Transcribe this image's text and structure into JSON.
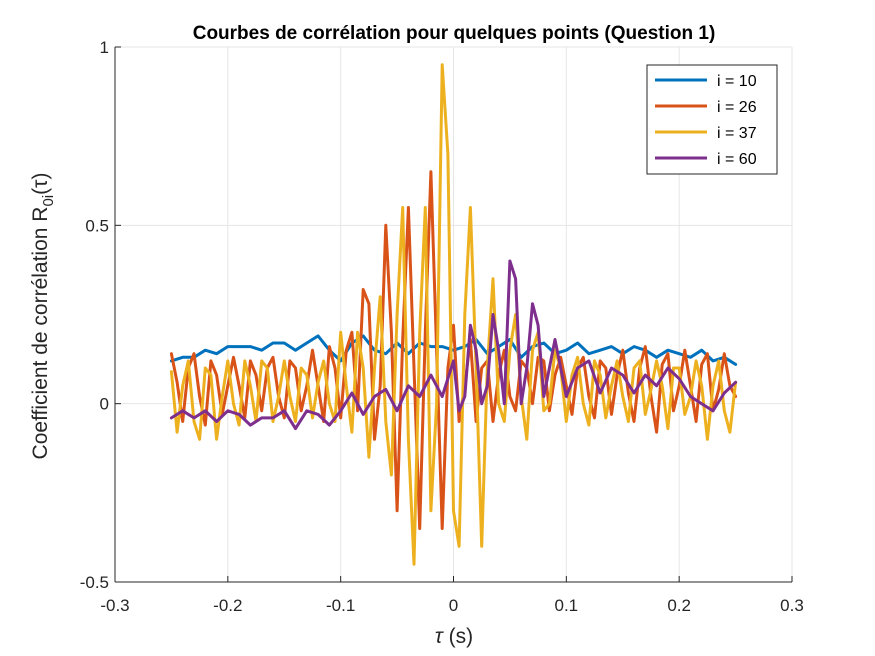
{
  "chart_data": {
    "type": "line",
    "title": "Courbes de corrélation pour quelques points (Question 1)",
    "xlabel": {
      "symbol": "τ",
      "unit": " (s)"
    },
    "ylabel": {
      "prefix": "Coefficient de corrélation R",
      "subscript": "0i",
      "suffix": "(τ)"
    },
    "xlim": [
      -0.3,
      0.3
    ],
    "ylim": [
      -0.5,
      1
    ],
    "xticks": [
      -0.3,
      -0.2,
      -0.1,
      0,
      0.1,
      0.2,
      0.3
    ],
    "xtick_labels": [
      "-0.3",
      "-0.2",
      "-0.1",
      "0",
      "0.1",
      "0.2",
      "0.3"
    ],
    "yticks": [
      -0.5,
      0,
      0.5,
      1
    ],
    "ytick_labels": [
      "-0.5",
      "0",
      "0.5",
      "1"
    ],
    "grid": true,
    "legend_position": "top-right",
    "series": [
      {
        "name": "i = 10",
        "color": "#0072BD",
        "x": [
          -0.25,
          -0.24,
          -0.23,
          -0.22,
          -0.21,
          -0.2,
          -0.19,
          -0.18,
          -0.17,
          -0.16,
          -0.15,
          -0.14,
          -0.13,
          -0.12,
          -0.11,
          -0.1,
          -0.09,
          -0.08,
          -0.07,
          -0.06,
          -0.05,
          -0.04,
          -0.03,
          -0.02,
          -0.01,
          0,
          0.01,
          0.02,
          0.03,
          0.04,
          0.05,
          0.06,
          0.07,
          0.08,
          0.09,
          0.1,
          0.11,
          0.12,
          0.13,
          0.14,
          0.15,
          0.16,
          0.17,
          0.18,
          0.19,
          0.2,
          0.21,
          0.22,
          0.23,
          0.24,
          0.25
        ],
        "y": [
          0.12,
          0.13,
          0.13,
          0.15,
          0.14,
          0.16,
          0.16,
          0.16,
          0.15,
          0.17,
          0.17,
          0.15,
          0.17,
          0.19,
          0.15,
          0.12,
          0.17,
          0.19,
          0.15,
          0.14,
          0.17,
          0.14,
          0.17,
          0.16,
          0.16,
          0.15,
          0.16,
          0.18,
          0.14,
          0.16,
          0.18,
          0.13,
          0.16,
          0.17,
          0.14,
          0.15,
          0.17,
          0.14,
          0.15,
          0.16,
          0.14,
          0.16,
          0.15,
          0.13,
          0.15,
          0.14,
          0.13,
          0.15,
          0.12,
          0.13,
          0.11
        ]
      },
      {
        "name": "i = 26",
        "color": "#D95319",
        "x": [
          -0.25,
          -0.245,
          -0.24,
          -0.235,
          -0.23,
          -0.225,
          -0.22,
          -0.215,
          -0.21,
          -0.205,
          -0.2,
          -0.195,
          -0.19,
          -0.185,
          -0.18,
          -0.175,
          -0.17,
          -0.165,
          -0.16,
          -0.155,
          -0.15,
          -0.145,
          -0.14,
          -0.135,
          -0.13,
          -0.125,
          -0.12,
          -0.115,
          -0.11,
          -0.105,
          -0.1,
          -0.095,
          -0.09,
          -0.085,
          -0.08,
          -0.075,
          -0.07,
          -0.065,
          -0.06,
          -0.055,
          -0.05,
          -0.045,
          -0.04,
          -0.035,
          -0.03,
          -0.025,
          -0.02,
          -0.015,
          -0.01,
          -0.005,
          0,
          0.005,
          0.01,
          0.015,
          0.02,
          0.025,
          0.03,
          0.035,
          0.04,
          0.045,
          0.05,
          0.055,
          0.06,
          0.065,
          0.07,
          0.075,
          0.08,
          0.085,
          0.09,
          0.095,
          0.1,
          0.105,
          0.11,
          0.115,
          0.12,
          0.125,
          0.13,
          0.135,
          0.14,
          0.145,
          0.15,
          0.155,
          0.16,
          0.165,
          0.17,
          0.175,
          0.18,
          0.185,
          0.19,
          0.195,
          0.2,
          0.205,
          0.21,
          0.215,
          0.22,
          0.225,
          0.23,
          0.235,
          0.24,
          0.245,
          0.25
        ],
        "y": [
          0.14,
          0.06,
          -0.05,
          0.1,
          0.14,
          0.02,
          -0.06,
          0.12,
          0.08,
          -0.03,
          0.05,
          0.13,
          0.05,
          -0.04,
          0.12,
          0.08,
          -0.02,
          0.1,
          0.13,
          0.02,
          -0.04,
          0.12,
          0.1,
          -0.02,
          0.05,
          0.15,
          0.05,
          -0.05,
          0.16,
          0.1,
          -0.04,
          0.15,
          0.2,
          -0.02,
          0.32,
          0.28,
          -0.1,
          0.05,
          0.5,
          0.2,
          -0.3,
          0.18,
          0.55,
          0.1,
          -0.35,
          0.2,
          0.65,
          0.15,
          -0.35,
          0.1,
          0.22,
          -0.05,
          0.05,
          0.18,
          -0.05,
          0.1,
          0.12,
          -0.05,
          0.08,
          0.15,
          0.02,
          -0.02,
          0.12,
          0.1,
          0.0,
          0.13,
          0.12,
          -0.02,
          0.08,
          0.13,
          0.05,
          -0.03,
          0.1,
          0.13,
          0.02,
          -0.04,
          0.12,
          0.1,
          -0.03,
          0.08,
          0.15,
          0.03,
          -0.05,
          0.1,
          0.16,
          0.02,
          -0.08,
          0.11,
          0.14,
          -0.02,
          0.05,
          0.15,
          0.05,
          -0.05,
          0.11,
          0.14,
          -0.02,
          0.04,
          0.14,
          0.05,
          0.02
        ]
      },
      {
        "name": "i = 37",
        "color": "#EDB120",
        "x": [
          -0.25,
          -0.245,
          -0.24,
          -0.235,
          -0.23,
          -0.225,
          -0.22,
          -0.215,
          -0.21,
          -0.205,
          -0.2,
          -0.195,
          -0.19,
          -0.185,
          -0.18,
          -0.175,
          -0.17,
          -0.165,
          -0.16,
          -0.155,
          -0.15,
          -0.145,
          -0.14,
          -0.135,
          -0.13,
          -0.125,
          -0.12,
          -0.115,
          -0.11,
          -0.105,
          -0.1,
          -0.095,
          -0.09,
          -0.085,
          -0.08,
          -0.075,
          -0.07,
          -0.065,
          -0.06,
          -0.055,
          -0.05,
          -0.045,
          -0.04,
          -0.035,
          -0.03,
          -0.025,
          -0.02,
          -0.015,
          -0.01,
          -0.005,
          0,
          0.005,
          0.01,
          0.015,
          0.02,
          0.025,
          0.03,
          0.035,
          0.04,
          0.045,
          0.05,
          0.055,
          0.06,
          0.065,
          0.07,
          0.075,
          0.08,
          0.085,
          0.09,
          0.095,
          0.1,
          0.105,
          0.11,
          0.115,
          0.12,
          0.125,
          0.13,
          0.135,
          0.14,
          0.145,
          0.15,
          0.155,
          0.16,
          0.165,
          0.17,
          0.175,
          0.18,
          0.185,
          0.19,
          0.195,
          0.2,
          0.205,
          0.21,
          0.215,
          0.22,
          0.225,
          0.23,
          0.235,
          0.24,
          0.245,
          0.25
        ],
        "y": [
          0.09,
          -0.08,
          0.05,
          0.12,
          -0.05,
          -0.1,
          0.1,
          0.08,
          -0.1,
          0.02,
          0.12,
          0.0,
          -0.06,
          0.12,
          0.05,
          -0.05,
          0.12,
          0.1,
          -0.05,
          0.02,
          0.12,
          0.02,
          -0.05,
          0.1,
          0.08,
          -0.04,
          0.06,
          0.12,
          0.0,
          -0.05,
          0.2,
          0.05,
          -0.08,
          0.2,
          0.1,
          -0.15,
          0.1,
          0.3,
          -0.05,
          -0.2,
          0.25,
          0.55,
          -0.1,
          -0.45,
          0.2,
          0.55,
          -0.3,
          0.0,
          0.95,
          0.7,
          -0.3,
          -0.4,
          0.25,
          0.55,
          0.1,
          -0.4,
          0.1,
          0.35,
          0.0,
          -0.05,
          0.15,
          0.25,
          0.02,
          -0.1,
          0.15,
          0.2,
          -0.02,
          0.0,
          0.15,
          0.1,
          -0.05,
          0.08,
          0.13,
          0.0,
          -0.06,
          0.12,
          0.08,
          -0.04,
          0.05,
          0.12,
          0.02,
          -0.05,
          0.1,
          0.12,
          -0.03,
          0.04,
          0.12,
          0.05,
          -0.07,
          0.1,
          0.1,
          -0.03,
          0.02,
          0.12,
          0.05,
          -0.1,
          0.05,
          0.12,
          -0.02,
          -0.08,
          0.06
        ]
      },
      {
        "name": "i = 60",
        "color": "#7E2F8E",
        "x": [
          -0.25,
          -0.24,
          -0.23,
          -0.22,
          -0.21,
          -0.2,
          -0.19,
          -0.18,
          -0.17,
          -0.16,
          -0.15,
          -0.14,
          -0.13,
          -0.12,
          -0.11,
          -0.1,
          -0.09,
          -0.08,
          -0.07,
          -0.06,
          -0.05,
          -0.04,
          -0.03,
          -0.02,
          -0.01,
          0,
          0.005,
          0.01,
          0.015,
          0.02,
          0.025,
          0.03,
          0.035,
          0.04,
          0.045,
          0.05,
          0.055,
          0.06,
          0.065,
          0.07,
          0.075,
          0.08,
          0.085,
          0.09,
          0.1,
          0.11,
          0.12,
          0.13,
          0.14,
          0.15,
          0.16,
          0.17,
          0.18,
          0.19,
          0.2,
          0.21,
          0.22,
          0.23,
          0.24,
          0.25
        ],
        "y": [
          -0.04,
          -0.02,
          -0.04,
          -0.02,
          -0.05,
          -0.02,
          -0.03,
          -0.06,
          -0.04,
          -0.04,
          -0.02,
          -0.07,
          -0.02,
          -0.03,
          -0.06,
          -0.02,
          0.03,
          -0.03,
          0.02,
          0.04,
          -0.02,
          0.05,
          0.02,
          0.08,
          0.02,
          0.12,
          -0.02,
          0.02,
          0.22,
          0.15,
          0.0,
          0.05,
          0.25,
          0.15,
          0.0,
          0.4,
          0.35,
          0.0,
          0.1,
          0.28,
          0.22,
          0.02,
          0.1,
          0.18,
          0.02,
          0.1,
          0.12,
          0.03,
          0.1,
          0.08,
          0.03,
          0.08,
          0.05,
          0.1,
          0.07,
          0.02,
          0.0,
          -0.02,
          0.03,
          0.06
        ]
      }
    ]
  }
}
